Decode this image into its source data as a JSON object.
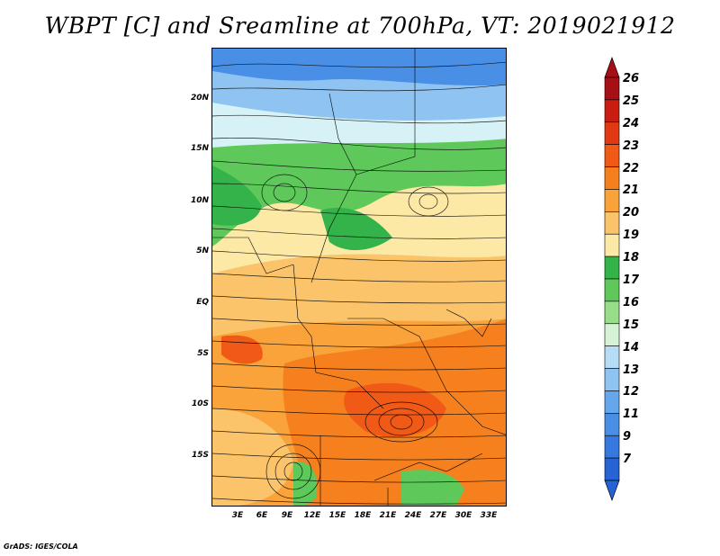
{
  "title": "WBPT [C] and Sreamline at 700hPa, VT: 2019021912",
  "credit": "GrADS: IGES/COLA",
  "latitude_labels": [
    "20N",
    "15N",
    "10N",
    "5N",
    "EQ",
    "5S",
    "10S",
    "15S"
  ],
  "longitude_labels": [
    "3E",
    "6E",
    "9E",
    "12E",
    "15E",
    "18E",
    "21E",
    "24E",
    "27E",
    "30E",
    "33E"
  ],
  "colorbar": {
    "labels": [
      "26",
      "25",
      "24",
      "23",
      "22",
      "21",
      "20",
      "19",
      "18",
      "17",
      "16",
      "15",
      "14",
      "13",
      "12",
      "11",
      "9",
      "7"
    ],
    "colors": [
      "#a50f15",
      "#c81e12",
      "#e03a14",
      "#f05a16",
      "#f7801e",
      "#f9a33a",
      "#fbc46a",
      "#fde9a6",
      "#34b34a",
      "#5ec95a",
      "#98dd8a",
      "#d6f2d6",
      "#b6dcf6",
      "#8ec3f2",
      "#64a7ec",
      "#4a8fe6",
      "#3778de",
      "#2663d4"
    ],
    "top_arrow_color": "#a50f15",
    "bottom_arrow_color": "#2663d4"
  },
  "map_colors": {
    "deep_blue": "#4a8fe6",
    "light_blue": "#8ec3f2",
    "pale_blue": "#d6f2f6",
    "green_dark": "#34b34a",
    "green": "#5ec95a",
    "yellow": "#fde9a6",
    "light_orange": "#fbc46a",
    "orange": "#f9a33a",
    "dark_orange": "#f7801e",
    "red_orange": "#f05a16"
  }
}
